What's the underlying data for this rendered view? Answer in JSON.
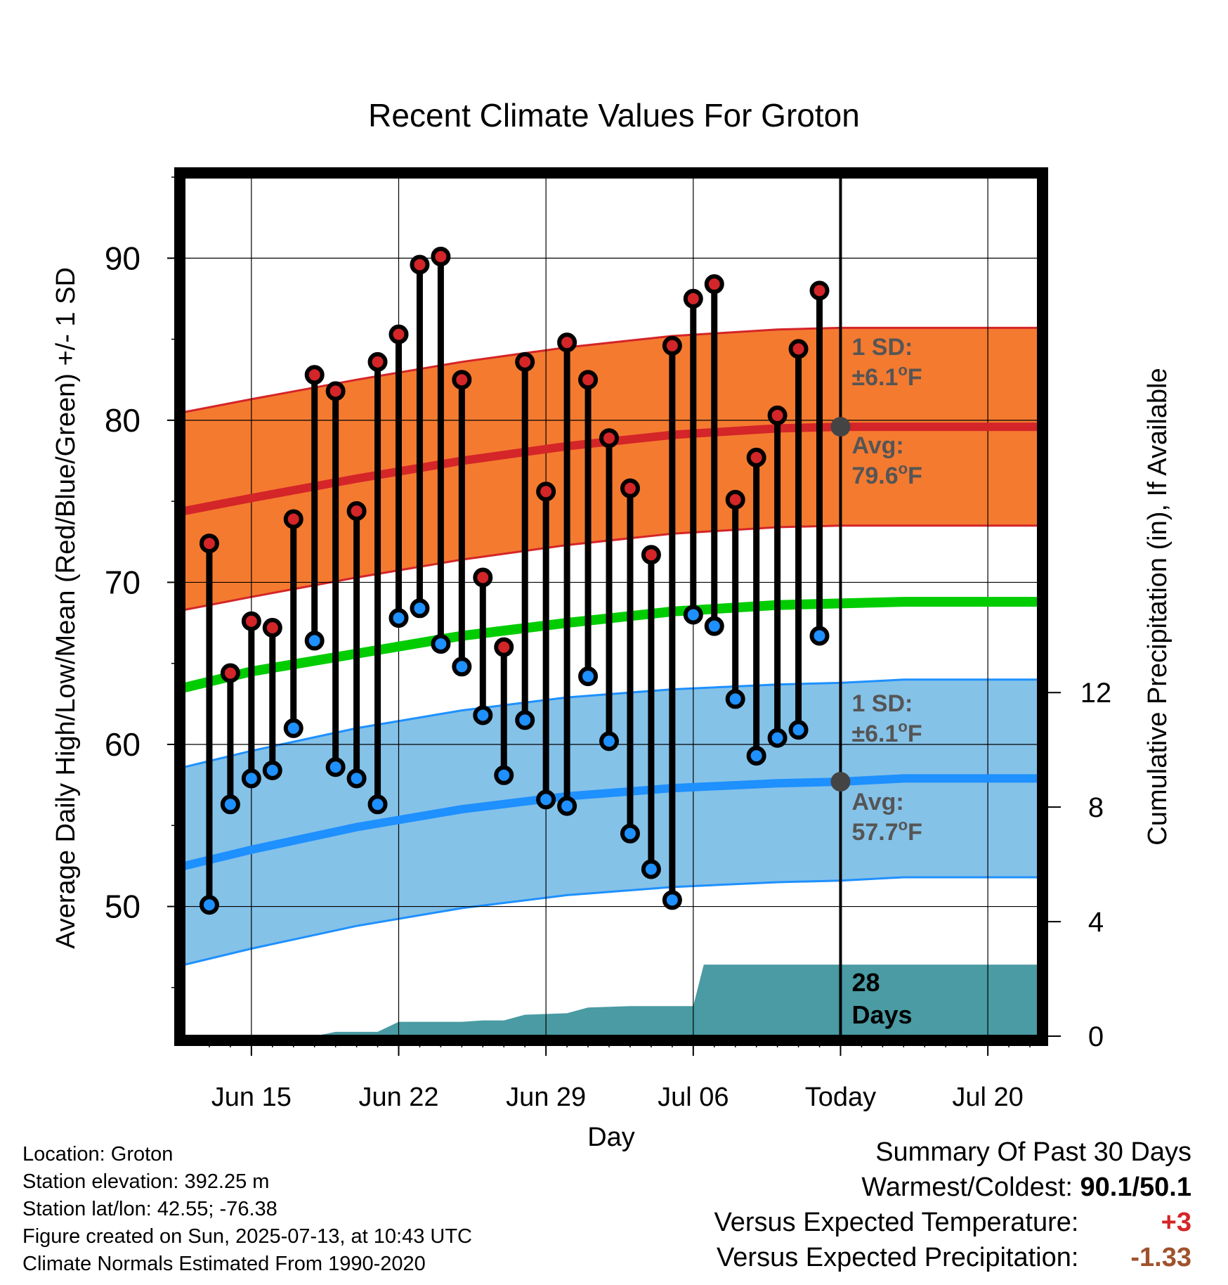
{
  "chart_data": {
    "type": "line",
    "title": "Recent Climate Values For Groton",
    "xlabel": "Day",
    "ylabel": "Average Daily High/Low/Mean (Red/Blue/Green) +/- 1 SD",
    "y2label": "Cumulative Precipitation (in), If Available",
    "ylim": [
      42,
      95
    ],
    "y2lim": [
      0,
      30
    ],
    "x_ticks": [
      {
        "day": 15,
        "label": "Jun 15"
      },
      {
        "day": 22,
        "label": "Jun 22"
      },
      {
        "day": 29,
        "label": "Jun 29"
      },
      {
        "day": 36,
        "label": "Jul 06"
      },
      {
        "day": 43,
        "label": "Today"
      },
      {
        "day": 50,
        "label": "Jul 20"
      }
    ],
    "xlim": [
      11.8,
      52.4
    ],
    "y_ticks": [
      50,
      60,
      70,
      80,
      90
    ],
    "y2_ticks": [
      0,
      4,
      8,
      12
    ],
    "today_day": 43,
    "observations": [
      {
        "day": 13,
        "high": 72.4,
        "low": 50.1
      },
      {
        "day": 14,
        "high": 64.4,
        "low": 56.3
      },
      {
        "day": 15,
        "high": 67.6,
        "low": 57.9
      },
      {
        "day": 16,
        "high": 67.2,
        "low": 58.4
      },
      {
        "day": 17,
        "high": 73.9,
        "low": 61.0
      },
      {
        "day": 18,
        "high": 82.8,
        "low": 66.4
      },
      {
        "day": 19,
        "high": 81.8,
        "low": 58.6
      },
      {
        "day": 20,
        "high": 74.4,
        "low": 57.9
      },
      {
        "day": 21,
        "high": 83.6,
        "low": 56.3
      },
      {
        "day": 22,
        "high": 85.3,
        "low": 67.8
      },
      {
        "day": 23,
        "high": 89.6,
        "low": 68.4
      },
      {
        "day": 24,
        "high": 90.1,
        "low": 66.2
      },
      {
        "day": 25,
        "high": 82.5,
        "low": 64.8
      },
      {
        "day": 26,
        "high": 70.3,
        "low": 61.8
      },
      {
        "day": 27,
        "high": 66.0,
        "low": 58.1
      },
      {
        "day": 28,
        "high": 83.6,
        "low": 61.5
      },
      {
        "day": 29,
        "high": 75.6,
        "low": 56.6
      },
      {
        "day": 30,
        "high": 84.8,
        "low": 56.2
      },
      {
        "day": 31,
        "high": 82.5,
        "low": 64.2
      },
      {
        "day": 32,
        "high": 78.9,
        "low": 60.2
      },
      {
        "day": 33,
        "high": 75.8,
        "low": 54.5
      },
      {
        "day": 34,
        "high": 71.7,
        "low": 52.3
      },
      {
        "day": 35,
        "high": 84.6,
        "low": 50.4
      },
      {
        "day": 36,
        "high": 87.5,
        "low": 68.0
      },
      {
        "day": 37,
        "high": 88.4,
        "low": 67.3
      },
      {
        "day": 38,
        "high": 75.1,
        "low": 62.8
      },
      {
        "day": 39,
        "high": 77.7,
        "low": 59.3
      },
      {
        "day": 40,
        "high": 80.3,
        "low": 60.4
      },
      {
        "day": 41,
        "high": 84.4,
        "low": 60.9
      },
      {
        "day": 42,
        "high": 88.0,
        "low": 66.7
      }
    ],
    "normals": {
      "day": [
        11.8,
        15,
        20,
        25,
        30,
        35,
        40,
        43,
        46,
        50,
        52.4
      ],
      "high_avg": [
        74.4,
        75.2,
        76.4,
        77.5,
        78.4,
        79.1,
        79.5,
        79.6,
        79.6,
        79.6,
        79.6
      ],
      "high_sd": 6.1,
      "mean_avg": [
        63.5,
        64.5,
        65.6,
        66.7,
        67.5,
        68.2,
        68.6,
        68.7,
        68.8,
        68.8,
        68.8
      ],
      "low_avg": [
        52.5,
        53.5,
        54.9,
        56.0,
        56.8,
        57.3,
        57.6,
        57.7,
        57.9,
        57.9,
        57.9
      ],
      "low_sd": 6.1
    },
    "precip_cumulative": {
      "day": [
        11.8,
        15,
        18,
        19,
        21,
        22,
        25,
        26,
        27,
        28,
        30,
        31,
        33,
        35,
        36,
        36.5,
        37,
        52.4
      ],
      "inches": [
        0,
        0,
        0,
        0.15,
        0.15,
        0.5,
        0.5,
        0.55,
        0.55,
        0.75,
        0.8,
        1.0,
        1.05,
        1.05,
        1.05,
        2.5,
        2.5,
        2.5
      ]
    },
    "annotations": {
      "high_sd_label": "1 SD:",
      "high_sd_value": "±6.1",
      "high_avg_label": "Avg:",
      "high_avg_value": "79.6",
      "low_sd_label": "1 SD:",
      "low_sd_value": "±6.1",
      "low_avg_label": "Avg:",
      "low_avg_value": "57.7",
      "unit_deg": "o",
      "unit_f": "F",
      "days_count": "28",
      "days_label": "Days"
    },
    "colors": {
      "high_band": "#f47a30",
      "high_line": "#d42528",
      "mean_line": "#00cc00",
      "low_band": "#85c2e8",
      "low_line": "#1e90ff",
      "high_dot": "#d42528",
      "low_dot": "#1e90ff",
      "precip": "#4a9ba3",
      "annotation_text": "#555555"
    }
  },
  "metadata": {
    "location": "Location: Groton",
    "elevation": "Station elevation: 392.25 m",
    "latlon": "Station lat/lon: 42.55; -76.38",
    "created": "Figure created on Sun, 2025-07-13, at 10:43 UTC",
    "normals": "Climate Normals Estimated From 1990-2020"
  },
  "summary": {
    "title": "Summary Of Past 30 Days",
    "warmest_label": "Warmest/Coldest:",
    "warmest_value": "90.1/50.1",
    "temp_label": "Versus Expected Temperature:",
    "temp_value": "+3",
    "temp_color": "#d42528",
    "precip_label": "Versus Expected Precipitation:",
    "precip_value": "-1.33",
    "precip_color": "#a0522d"
  }
}
